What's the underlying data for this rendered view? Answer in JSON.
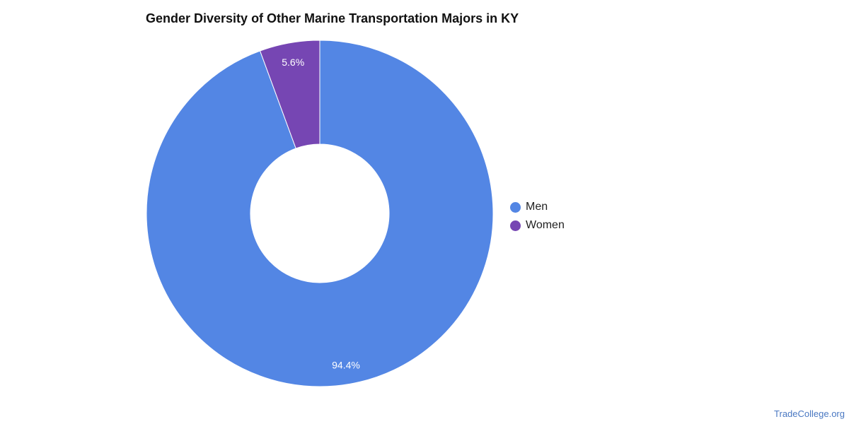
{
  "chart_data": {
    "type": "pie",
    "title": "Gender Diversity of Other Marine Transportation Majors in KY",
    "categories": [
      "Men",
      "Women"
    ],
    "values": [
      94.4,
      5.6
    ],
    "labels": [
      "94.4%",
      "5.6%"
    ],
    "colors": [
      "#5386e4",
      "#7646b3"
    ],
    "donut": true,
    "legend_position": "right"
  },
  "legend": {
    "items": [
      {
        "label": "Men",
        "color": "#5386e4"
      },
      {
        "label": "Women",
        "color": "#7646b3"
      }
    ]
  },
  "watermark": "TradeCollege.org"
}
